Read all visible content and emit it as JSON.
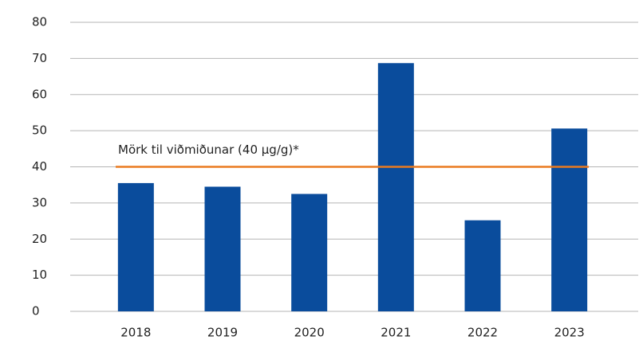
{
  "chart_data": {
    "type": "bar",
    "categories": [
      "2018",
      "2019",
      "2020",
      "2021",
      "2022",
      "2023"
    ],
    "values": [
      35.5,
      34.5,
      32.5,
      68.7,
      25.2,
      50.6
    ],
    "color": "#0a4c9c",
    "ylim": [
      0,
      80
    ],
    "yticks": [
      0,
      10,
      20,
      30,
      40,
      50,
      60,
      70,
      80
    ],
    "grid": true,
    "reference_line": {
      "value": 40,
      "label": "Mörk til viðmiðunar (40 µg/g)*",
      "color": "#ea7a1e"
    }
  }
}
